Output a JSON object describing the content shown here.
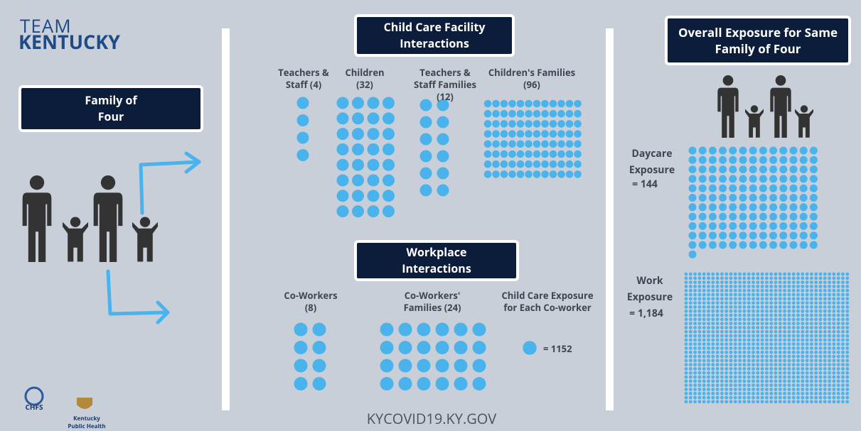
{
  "logo": {
    "line1": "TEAM",
    "line2": "KENTUCKY"
  },
  "family_panel": {
    "title": "Family of Four"
  },
  "child_care": {
    "title": "Child Care Facility Interactions",
    "groups": [
      {
        "label": "Teachers & Staff (4)",
        "count": 4
      },
      {
        "label": "Children (32)",
        "count": 32
      },
      {
        "label": "Teachers & Staff Families (12)",
        "count": 12
      },
      {
        "label": "Children's Families (96)",
        "count": 96
      }
    ]
  },
  "workplace": {
    "title": "Workplace Interactions",
    "groups": [
      {
        "label": "Co-Workers (8)",
        "count": 8
      },
      {
        "label": "Co-Workers' Families (24)",
        "count": 24
      }
    ],
    "per_coworker": {
      "label": "Child Care Exposure for Each Co-worker",
      "value": 1152,
      "value_label": "= 1152"
    }
  },
  "overall": {
    "title": "Overall Exposure for Same Family of Four",
    "daycare": {
      "label": "Daycare Exposure",
      "value": 144,
      "value_label": "= 144"
    },
    "work": {
      "label": "Work Exposure",
      "value": 1184,
      "value_label": "= 1,184"
    }
  },
  "footer": {
    "url": "KYCOVID19.KY.GOV",
    "logos": [
      "CHFS",
      "Kentucky Public Health"
    ]
  }
}
